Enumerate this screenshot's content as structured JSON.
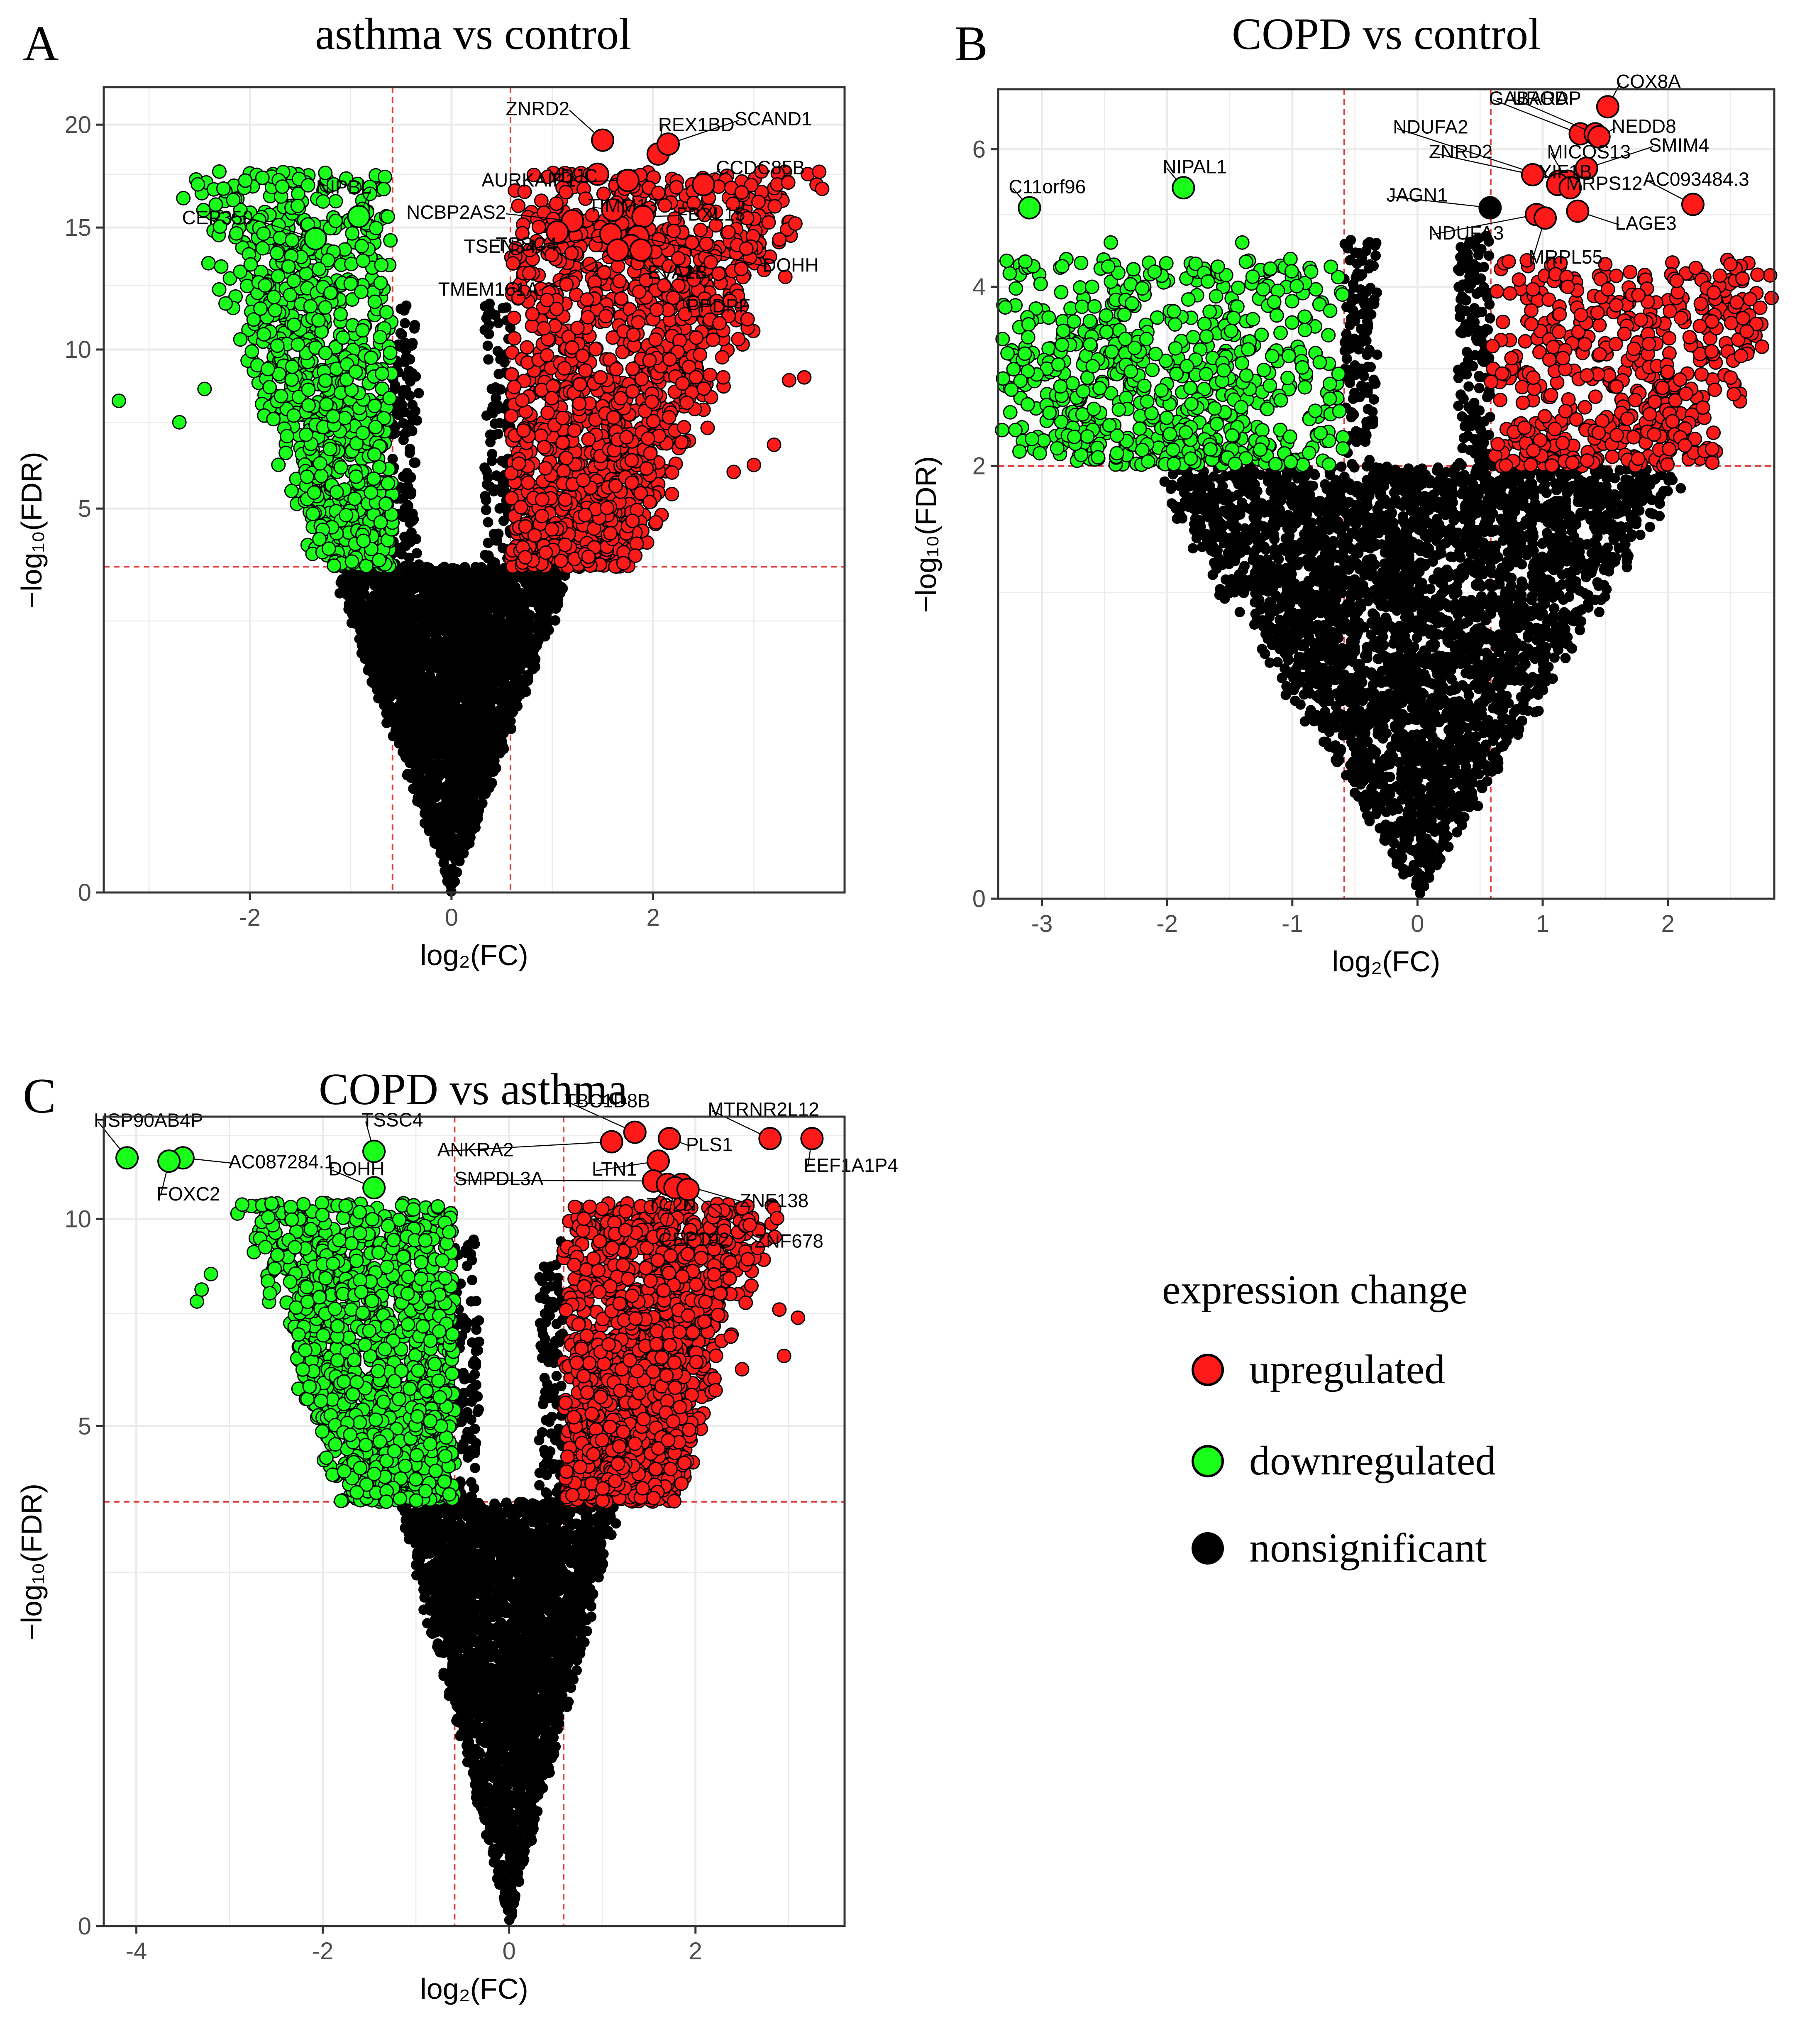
{
  "colors": {
    "upregulated": "#ff1a1a",
    "downregulated": "#1aff1a",
    "nonsignificant": "#000000",
    "threshold_line": "#e23b3b",
    "grid": "#ebebeb",
    "panel_border": "#333333"
  },
  "legend": {
    "title": "expression change",
    "items": [
      {
        "label": "upregulated",
        "color": "#ff1a1a"
      },
      {
        "label": "downregulated",
        "color": "#1aff1a"
      },
      {
        "label": "nonsignificant",
        "color": "#000000"
      }
    ]
  },
  "chart_data": [
    {
      "type": "scatter",
      "panel_letter": "A",
      "title": "asthma vs control",
      "xlabel": "log₂(FC)",
      "ylabel": "−log₁₀(FDR)",
      "y_scale": "sqrt",
      "xlim": [
        -3.45,
        3.9
      ],
      "ylim": [
        0,
        22
      ],
      "xticks": [
        -2,
        0,
        2
      ],
      "yticks": [
        0,
        5,
        10,
        15,
        20
      ],
      "vlines": [
        -0.585,
        0.585
      ],
      "hline": 3.6,
      "grid": true,
      "legend": "shared",
      "cloud": {
        "fc_scale": 0.55,
        "fdr_cut": 3.6,
        "fc_cut": 0.585,
        "max_sqrt": 4.4,
        "seed": 11,
        "n_ns": 2600,
        "n_down": 900,
        "n_up": 1400,
        "down_side": 0.7,
        "up_side": 1.0
      },
      "outliers": [
        {
          "x": -3.3,
          "y": 8.2,
          "g": "down"
        },
        {
          "x": -2.7,
          "y": 7.5,
          "g": "down"
        },
        {
          "x": -2.45,
          "y": 8.6,
          "g": "down"
        },
        {
          "x": -1.85,
          "y": 12.5,
          "g": "down"
        },
        {
          "x": -1.75,
          "y": 11.5,
          "g": "down"
        },
        {
          "x": -1.2,
          "y": 12.2,
          "g": "down"
        },
        {
          "x": -0.95,
          "y": 9.2,
          "g": "down"
        },
        {
          "x": -0.6,
          "y": 7.4,
          "g": "ns"
        },
        {
          "x": 0.6,
          "y": 8.5,
          "g": "ns"
        },
        {
          "x": 3.2,
          "y": 6.8,
          "g": "up"
        },
        {
          "x": 3.0,
          "y": 6.2,
          "g": "up"
        },
        {
          "x": 3.5,
          "y": 9.0,
          "g": "up"
        },
        {
          "x": 3.35,
          "y": 8.9,
          "g": "up"
        },
        {
          "x": 2.8,
          "y": 6.0,
          "g": "up"
        },
        {
          "x": 2.2,
          "y": 12.0,
          "g": "up"
        }
      ],
      "labeled_points": [
        {
          "label": "CEP350",
          "x": -1.35,
          "y": 14.5,
          "g": "down"
        },
        {
          "label": "NIPBL",
          "x": -0.92,
          "y": 15.5,
          "g": "down"
        },
        {
          "label": "ZNRD2",
          "x": 1.5,
          "y": 19.2,
          "g": "up"
        },
        {
          "label": "REX1BD",
          "x": 2.05,
          "y": 18.5,
          "g": "up"
        },
        {
          "label": "SCAND1",
          "x": 2.15,
          "y": 19.0,
          "g": "up"
        },
        {
          "label": "YDJC",
          "x": 1.45,
          "y": 17.5,
          "g": "up"
        },
        {
          "label": "AURKAIP1",
          "x": 1.75,
          "y": 17.2,
          "g": "up"
        },
        {
          "label": "CCDC85B",
          "x": 2.5,
          "y": 17.0,
          "g": "up"
        },
        {
          "label": "TIMM13",
          "x": 1.6,
          "y": 15.8,
          "g": "up"
        },
        {
          "label": "NCBP2AS2",
          "x": 1.2,
          "y": 15.3,
          "g": "up"
        },
        {
          "label": "FBXL15",
          "x": 1.9,
          "y": 15.5,
          "g": "up"
        },
        {
          "label": "TSSC4",
          "x": 1.05,
          "y": 14.8,
          "g": "up"
        },
        {
          "label": "TSEN34",
          "x": 1.58,
          "y": 14.7,
          "g": "up"
        },
        {
          "label": "DOHH",
          "x": 1.85,
          "y": 14.6,
          "g": "up"
        },
        {
          "label": "EVA1B",
          "x": 1.78,
          "y": 14.2,
          "g": "up"
        },
        {
          "label": "TMEM161A",
          "x": 1.65,
          "y": 14.0,
          "g": "up"
        },
        {
          "label": "PPDPF",
          "x": 1.88,
          "y": 14.0,
          "g": "up"
        }
      ]
    },
    {
      "type": "scatter",
      "panel_letter": "B",
      "title": "COPD vs control",
      "xlabel": "log₂(FC)",
      "ylabel": "−log₁₀(FDR)",
      "y_scale": "sqrt",
      "xlim": [
        -3.35,
        2.85
      ],
      "ylim": [
        0,
        7.0
      ],
      "xticks": [
        -3,
        -2,
        -1,
        0,
        1,
        2
      ],
      "yticks": [
        0,
        2,
        4,
        6
      ],
      "vlines": [
        -0.585,
        0.585
      ],
      "hline": 2.0,
      "grid": true,
      "legend": "shared",
      "cloud": {
        "fc_scale": 1.33,
        "fdr_cut": 2.0,
        "fc_cut": 0.585,
        "max_sqrt": 2.15,
        "seed": 23,
        "n_ns": 3400,
        "n_down": 700,
        "n_up": 500,
        "down_side": 1.0,
        "up_side": 0.75
      },
      "outliers": [
        {
          "x": -2.45,
          "y": 4.6,
          "g": "down"
        },
        {
          "x": -2.6,
          "y": 4.0,
          "g": "down"
        },
        {
          "x": -2.1,
          "y": 4.2,
          "g": "down"
        },
        {
          "x": -1.4,
          "y": 4.6,
          "g": "down"
        },
        {
          "x": -0.85,
          "y": 4.2,
          "g": "down"
        },
        {
          "x": -0.6,
          "y": 3.9,
          "g": "down"
        },
        {
          "x": 2.5,
          "y": 4.3,
          "g": "up"
        },
        {
          "x": 2.55,
          "y": 3.8,
          "g": "up"
        },
        {
          "x": 2.6,
          "y": 3.6,
          "g": "up"
        },
        {
          "x": 2.35,
          "y": 3.2,
          "g": "up"
        },
        {
          "x": 1.5,
          "y": 4.3,
          "g": "up"
        },
        {
          "x": 1.2,
          "y": 4.0,
          "g": "up"
        }
      ],
      "labeled_points": [
        {
          "label": "C11orf96",
          "x": -3.1,
          "y": 5.1,
          "g": "down"
        },
        {
          "label": "NIPAL1",
          "x": -1.87,
          "y": 5.4,
          "g": "down"
        },
        {
          "label": "GABARAP",
          "x": 1.3,
          "y": 6.25,
          "g": "up"
        },
        {
          "label": "COX8A",
          "x": 1.52,
          "y": 6.7,
          "g": "up"
        },
        {
          "label": "UROD",
          "x": 1.42,
          "y": 6.25,
          "g": "up"
        },
        {
          "label": "NEDD8",
          "x": 1.45,
          "y": 6.2,
          "g": "up"
        },
        {
          "label": "NDUFA2",
          "x": 1.13,
          "y": 5.5,
          "g": "up"
        },
        {
          "label": "MICOS13",
          "x": 1.2,
          "y": 5.5,
          "g": "up"
        },
        {
          "label": "SMIM4",
          "x": 1.35,
          "y": 5.7,
          "g": "up"
        },
        {
          "label": "ZNRD2",
          "x": 0.92,
          "y": 5.6,
          "g": "up"
        },
        {
          "label": "JAGN1",
          "x": 0.58,
          "y": 5.1,
          "g": "ns"
        },
        {
          "label": "YIF1B",
          "x": 1.12,
          "y": 5.45,
          "g": "up"
        },
        {
          "label": "MRPS12",
          "x": 1.22,
          "y": 5.4,
          "g": "up"
        },
        {
          "label": "AC093484.3",
          "x": 2.2,
          "y": 5.15,
          "g": "up"
        },
        {
          "label": "NDUFA3",
          "x": 0.95,
          "y": 5.0,
          "g": "up"
        },
        {
          "label": "LAGE3",
          "x": 1.28,
          "y": 5.05,
          "g": "up"
        },
        {
          "label": "MRPL55",
          "x": 1.02,
          "y": 4.95,
          "g": "up"
        }
      ]
    },
    {
      "type": "scatter",
      "panel_letter": "C",
      "title": "COPD vs asthma",
      "xlabel": "log₂(FC)",
      "ylabel": "−log₁₀(FDR)",
      "y_scale": "sqrt",
      "xlim": [
        -4.35,
        3.6
      ],
      "ylim": [
        0,
        13.1
      ],
      "xticks": [
        -4,
        -2,
        0,
        2
      ],
      "yticks": [
        0,
        5,
        10
      ],
      "vlines": [
        -0.585,
        0.585
      ],
      "hline": 3.6,
      "grid": true,
      "legend": "shared",
      "cloud": {
        "fc_scale": 0.55,
        "fdr_cut": 3.6,
        "fc_cut": 0.585,
        "max_sqrt": 3.35,
        "seed": 37,
        "n_ns": 2600,
        "n_down": 1200,
        "n_up": 1400,
        "down_side": 1.0,
        "up_side": 1.0
      },
      "outliers": [
        {
          "x": -3.35,
          "y": 7.8,
          "g": "down"
        },
        {
          "x": -3.3,
          "y": 8.1,
          "g": "down"
        },
        {
          "x": -3.2,
          "y": 8.5,
          "g": "down"
        },
        {
          "x": -2.35,
          "y": 8.3,
          "g": "down"
        },
        {
          "x": -1.6,
          "y": 9.6,
          "g": "down"
        },
        {
          "x": -1.3,
          "y": 9.8,
          "g": "down"
        },
        {
          "x": -0.9,
          "y": 9.4,
          "g": "down"
        },
        {
          "x": -0.6,
          "y": 5.5,
          "g": "ns"
        },
        {
          "x": 0.5,
          "y": 6.5,
          "g": "ns"
        },
        {
          "x": 2.6,
          "y": 8.2,
          "g": "up"
        },
        {
          "x": 2.9,
          "y": 7.6,
          "g": "up"
        },
        {
          "x": 2.95,
          "y": 6.5,
          "g": "up"
        },
        {
          "x": 3.1,
          "y": 7.4,
          "g": "up"
        },
        {
          "x": 2.5,
          "y": 6.2,
          "g": "up"
        }
      ],
      "labeled_points": [
        {
          "label": "HSP90AB4P",
          "x": -4.1,
          "y": 11.8,
          "g": "down"
        },
        {
          "label": "AC087284.1",
          "x": -3.5,
          "y": 11.8,
          "g": "down"
        },
        {
          "label": "FOXC2",
          "x": -3.65,
          "y": 11.7,
          "g": "down"
        },
        {
          "label": "TSSC4",
          "x": -1.45,
          "y": 12.0,
          "g": "down"
        },
        {
          "label": "DOHH",
          "x": -1.45,
          "y": 10.9,
          "g": "down"
        },
        {
          "label": "TBC1D8B",
          "x": 1.35,
          "y": 12.6,
          "g": "up"
        },
        {
          "label": "MTRNR2L12",
          "x": 2.8,
          "y": 12.4,
          "g": "up"
        },
        {
          "label": "ANKRA2",
          "x": 1.1,
          "y": 12.3,
          "g": "up"
        },
        {
          "label": "PLS1",
          "x": 1.72,
          "y": 12.4,
          "g": "up"
        },
        {
          "label": "LTN1",
          "x": 1.6,
          "y": 11.7,
          "g": "up"
        },
        {
          "label": "EEF1A1P4",
          "x": 3.25,
          "y": 12.4,
          "g": "up"
        },
        {
          "label": "SMPDL3A",
          "x": 1.55,
          "y": 11.1,
          "g": "up"
        },
        {
          "label": "ZNF138",
          "x": 1.85,
          "y": 11.0,
          "g": "up"
        },
        {
          "label": "TC2N",
          "x": 1.7,
          "y": 11.0,
          "g": "up"
        },
        {
          "label": "CEP192",
          "x": 1.78,
          "y": 10.9,
          "g": "up"
        },
        {
          "label": "ZNF678",
          "x": 1.92,
          "y": 10.85,
          "g": "up"
        }
      ]
    }
  ]
}
